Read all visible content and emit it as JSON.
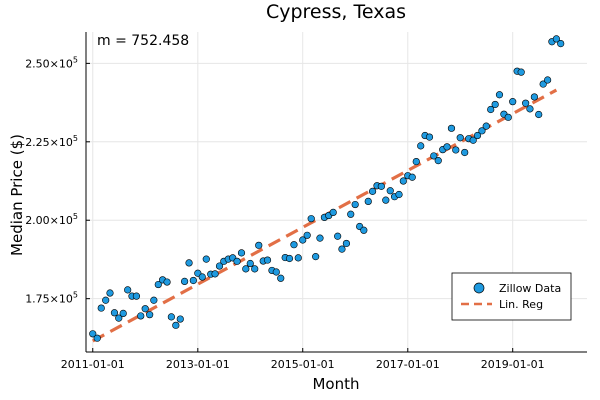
{
  "chart_data": {
    "type": "scatter",
    "title": "Cypress, Texas",
    "xlabel": "Month",
    "ylabel": "Median Price ($)",
    "annotation": "m = 752.458",
    "x_ticks": [
      "2011-01-01",
      "2013-01-01",
      "2015-01-01",
      "2017-01-01",
      "2019-01-01"
    ],
    "y_ticks": [
      {
        "value": 175000,
        "mantissa": "1.75",
        "base": "×10",
        "exp": "5"
      },
      {
        "value": 200000,
        "mantissa": "2.00",
        "base": "×10",
        "exp": "5"
      },
      {
        "value": 225000,
        "mantissa": "2.25",
        "base": "×10",
        "exp": "5"
      },
      {
        "value": 250000,
        "mantissa": "2.50",
        "base": "×10",
        "exp": "5"
      }
    ],
    "ylim": [
      158000,
      260000
    ],
    "grid": true,
    "legend_position": "bottom-right",
    "colors": {
      "scatter": "#1f9ae0",
      "line": "#e26f46"
    },
    "series": [
      {
        "name": "Zillow Data",
        "kind": "scatter",
        "points": [
          [
            "2011-01-01",
            163800
          ],
          [
            "2011-02-01",
            162400
          ],
          [
            "2011-03-01",
            172000
          ],
          [
            "2011-04-01",
            174500
          ],
          [
            "2011-05-01",
            176800
          ],
          [
            "2011-06-01",
            170500
          ],
          [
            "2011-07-01",
            168800
          ],
          [
            "2011-08-01",
            170300
          ],
          [
            "2011-09-01",
            177800
          ],
          [
            "2011-10-01",
            175800
          ],
          [
            "2011-11-01",
            175800
          ],
          [
            "2011-12-01",
            169500
          ],
          [
            "2012-01-01",
            171800
          ],
          [
            "2012-02-01",
            169900
          ],
          [
            "2012-03-01",
            174500
          ],
          [
            "2012-04-01",
            179500
          ],
          [
            "2012-05-01",
            181000
          ],
          [
            "2012-06-01",
            180300
          ],
          [
            "2012-07-01",
            169200
          ],
          [
            "2012-08-01",
            166500
          ],
          [
            "2012-09-01",
            168500
          ],
          [
            "2012-10-01",
            180500
          ],
          [
            "2012-11-01",
            186400
          ],
          [
            "2012-12-01",
            180800
          ],
          [
            "2013-01-01",
            183100
          ],
          [
            "2013-02-01",
            181900
          ],
          [
            "2013-03-01",
            187600
          ],
          [
            "2013-04-01",
            182800
          ],
          [
            "2013-05-01",
            182900
          ],
          [
            "2013-06-01",
            185400
          ],
          [
            "2013-07-01",
            186900
          ],
          [
            "2013-08-01",
            187600
          ],
          [
            "2013-09-01",
            188000
          ],
          [
            "2013-10-01",
            186900
          ],
          [
            "2013-11-01",
            189600
          ],
          [
            "2013-12-01",
            184500
          ],
          [
            "2014-01-01",
            186200
          ],
          [
            "2014-02-01",
            184500
          ],
          [
            "2014-03-01",
            192000
          ],
          [
            "2014-04-01",
            187000
          ],
          [
            "2014-05-01",
            187300
          ],
          [
            "2014-06-01",
            184000
          ],
          [
            "2014-07-01",
            183500
          ],
          [
            "2014-08-01",
            181500
          ],
          [
            "2014-09-01",
            188100
          ],
          [
            "2014-10-01",
            187800
          ],
          [
            "2014-11-01",
            192200
          ],
          [
            "2014-12-01",
            188000
          ],
          [
            "2015-01-01",
            193700
          ],
          [
            "2015-02-01",
            195200
          ],
          [
            "2015-03-01",
            200500
          ],
          [
            "2015-04-01",
            188400
          ],
          [
            "2015-05-01",
            194300
          ],
          [
            "2015-06-01",
            200900
          ],
          [
            "2015-07-01",
            201500
          ],
          [
            "2015-08-01",
            202500
          ],
          [
            "2015-09-01",
            194900
          ],
          [
            "2015-10-01",
            190800
          ],
          [
            "2015-11-01",
            192600
          ],
          [
            "2015-12-01",
            201900
          ],
          [
            "2016-01-01",
            205000
          ],
          [
            "2016-02-01",
            198000
          ],
          [
            "2016-03-01",
            196800
          ],
          [
            "2016-04-01",
            206000
          ],
          [
            "2016-05-01",
            209200
          ],
          [
            "2016-06-01",
            211000
          ],
          [
            "2016-07-01",
            210800
          ],
          [
            "2016-08-01",
            206400
          ],
          [
            "2016-09-01",
            209400
          ],
          [
            "2016-10-01",
            207500
          ],
          [
            "2016-11-01",
            208200
          ],
          [
            "2016-12-01",
            212500
          ],
          [
            "2017-01-01",
            214200
          ],
          [
            "2017-02-01",
            213700
          ],
          [
            "2017-03-01",
            218700
          ],
          [
            "2017-04-01",
            223700
          ],
          [
            "2017-05-01",
            227000
          ],
          [
            "2017-06-01",
            226500
          ],
          [
            "2017-07-01",
            220500
          ],
          [
            "2017-08-01",
            219000
          ],
          [
            "2017-09-01",
            222500
          ],
          [
            "2017-10-01",
            223400
          ],
          [
            "2017-11-01",
            229300
          ],
          [
            "2017-12-01",
            222400
          ],
          [
            "2018-01-01",
            226300
          ],
          [
            "2018-02-01",
            221600
          ],
          [
            "2018-03-01",
            226000
          ],
          [
            "2018-04-01",
            225500
          ],
          [
            "2018-05-01",
            227000
          ],
          [
            "2018-06-01",
            228500
          ],
          [
            "2018-07-01",
            230000
          ],
          [
            "2018-08-01",
            235300
          ],
          [
            "2018-09-01",
            236900
          ],
          [
            "2018-10-01",
            240000
          ],
          [
            "2018-11-01",
            233800
          ],
          [
            "2018-12-01",
            232800
          ],
          [
            "2019-01-01",
            237800
          ],
          [
            "2019-02-01",
            247500
          ],
          [
            "2019-03-01",
            247200
          ],
          [
            "2019-04-01",
            237300
          ],
          [
            "2019-05-01",
            235500
          ],
          [
            "2019-06-01",
            239300
          ],
          [
            "2019-07-01",
            233700
          ],
          [
            "2019-08-01",
            243400
          ],
          [
            "2019-09-01",
            244700
          ],
          [
            "2019-10-01",
            256900
          ],
          [
            "2019-11-01",
            257800
          ],
          [
            "2019-12-01",
            256300
          ]
        ]
      },
      {
        "name": "Lin. Reg",
        "kind": "line",
        "dash": true,
        "points": [
          [
            "2011-01-01",
            161500
          ],
          [
            "2019-11-01",
            241500
          ]
        ]
      }
    ]
  }
}
